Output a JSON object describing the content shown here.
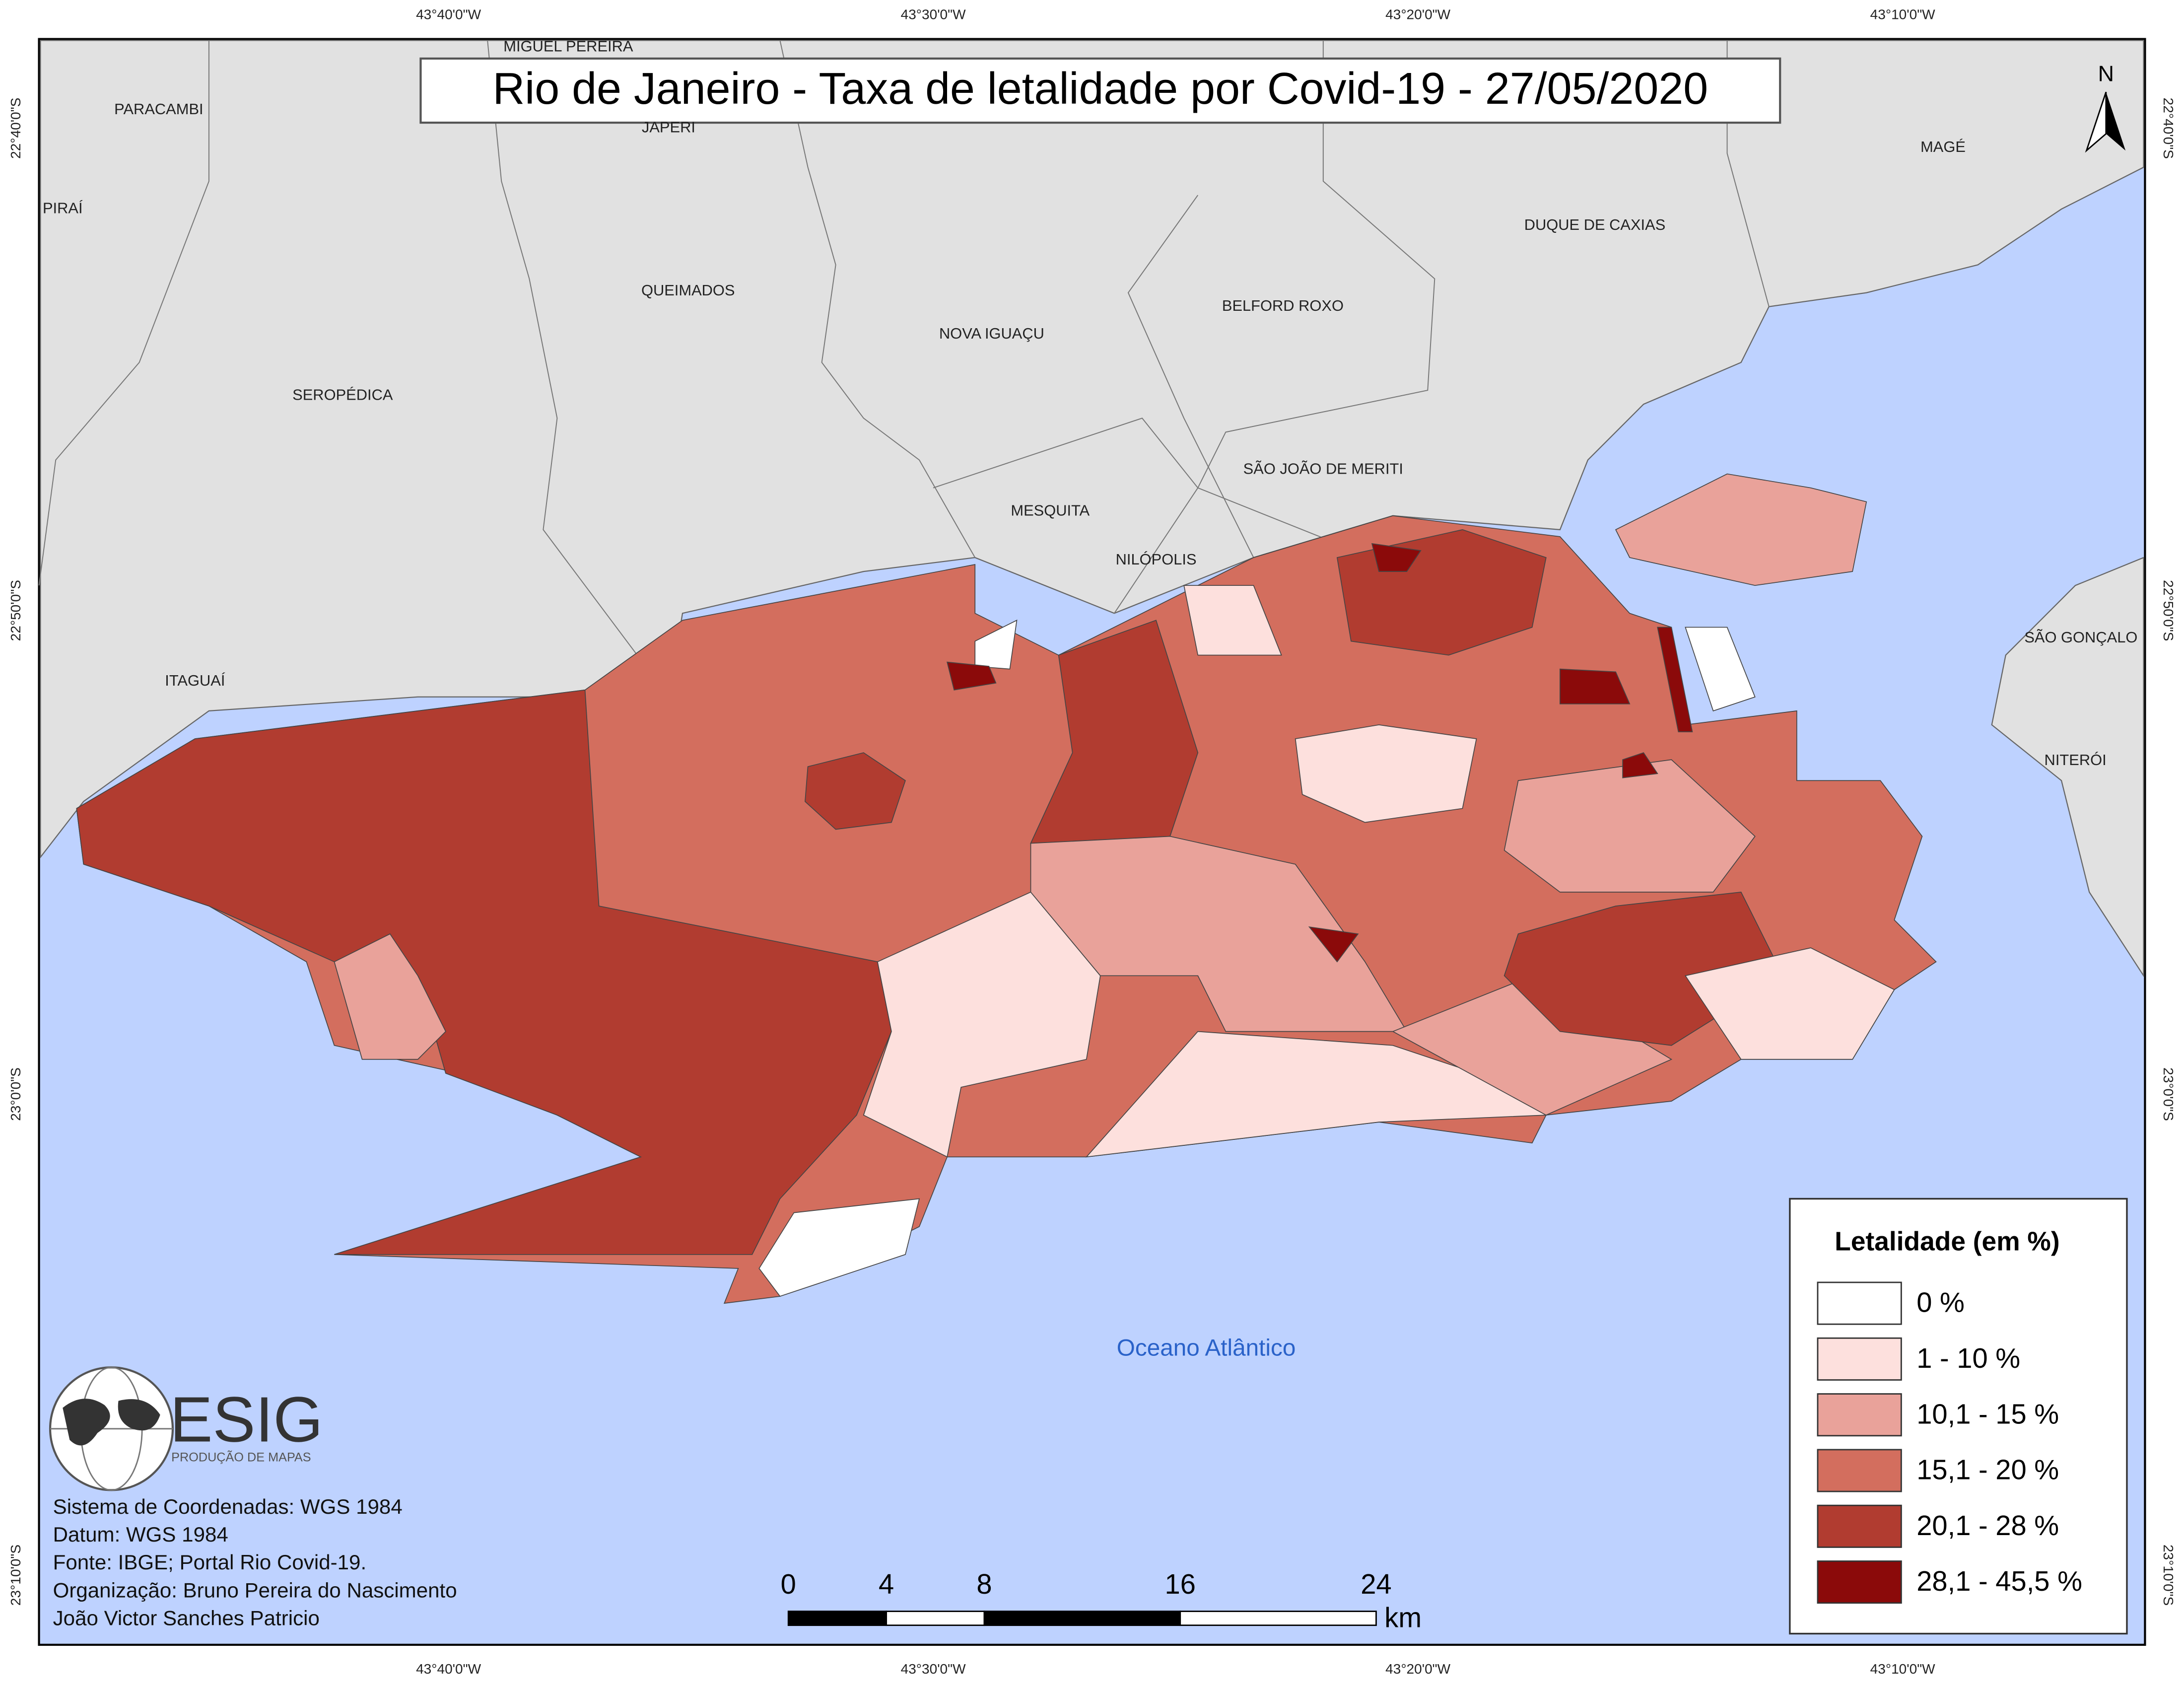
{
  "title": "Rio de Janeiro - Taxa de letalidade por Covid-19 - 27/05/2020",
  "north": "N",
  "longitudes": [
    "43°40'0\"W",
    "43°30'0\"W",
    "43°20'0\"W",
    "43°10'0\"W"
  ],
  "latitudes": [
    "22°40'0\"S",
    "22°50'0\"S",
    "23°0'0\"S",
    "23°10'0\"S"
  ],
  "places": [
    "MIGUEL PEREIRA",
    "PARACAMBI",
    "JAPERI",
    "PIRAÍ",
    "MAGÉ",
    "DUQUE DE CAXIAS",
    "QUEIMADOS",
    "BELFORD ROXO",
    "NOVA IGUAÇU",
    "SEROPÉDICA",
    "SÃO JOÃO DE MERITI",
    "MESQUITA",
    "NILÓPOLIS",
    "ITAGUAÍ",
    "SÃO GONÇALO",
    "NITERÓI"
  ],
  "ocean": "Oceano Atlântico",
  "legend": {
    "title": "Letalidade (em %)",
    "classes": [
      {
        "label": "0 %",
        "color": "#ffffff"
      },
      {
        "label": "1 - 10 %",
        "color": "#fde0dd"
      },
      {
        "label": "10,1 - 15 %",
        "color": "#e9a29a"
      },
      {
        "label": "15,1 - 20 %",
        "color": "#d36e5e"
      },
      {
        "label": "20,1 - 28 %",
        "color": "#b13c30"
      },
      {
        "label": "28,1 - 45,5 %",
        "color": "#8b0a0a"
      }
    ]
  },
  "scale": {
    "ticks": [
      0,
      4,
      8,
      16,
      24
    ],
    "unit": "km"
  },
  "logo": {
    "name": "ESIG",
    "tagline": "PRODUÇÃO DE MAPAS"
  },
  "credits": [
    "Sistema de Coordenadas: WGS 1984",
    "Datum: WGS 1984",
    "Fonte: IBGE; Portal Rio Covid-19.",
    "Organização: Bruno Pereira do Nascimento",
    "João Victor Sanches Patricio"
  ]
}
